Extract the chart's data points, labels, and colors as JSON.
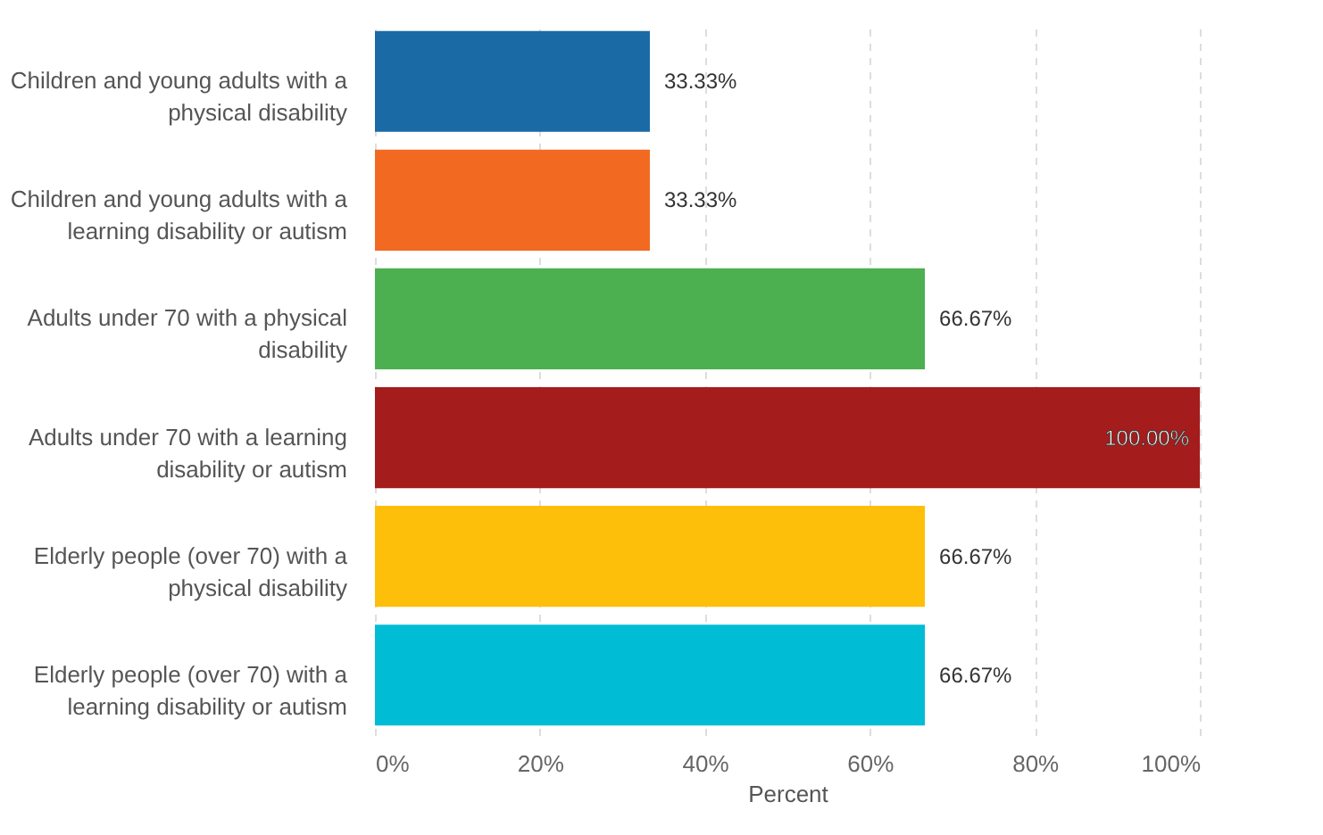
{
  "chart_data": {
    "type": "bar",
    "orientation": "horizontal",
    "xlabel": "Percent",
    "categories": [
      "Children and young adults with a physical disability",
      "Children and young adults with a learning disability or autism",
      "Adults under 70 with a physical disability",
      "Adults under 70 with a learning disability or autism",
      "Elderly people (over 70) with a physical disability",
      "Elderly people (over 70) with a learning disability or autism"
    ],
    "values": [
      33.33,
      33.33,
      66.67,
      100,
      66.67,
      66.67
    ],
    "colors": [
      "#1a6aa6",
      "#f26a21",
      "#4caf50",
      "#a51c1c",
      "#fdbf0a",
      "#00bcd4"
    ],
    "value_labels": [
      "33.33%",
      "33.33%",
      "66.67%",
      "100.00%",
      "66.67%",
      "66.67%"
    ],
    "xlim": [
      0,
      100
    ],
    "xticks": [
      {
        "value": 0,
        "label": "0%"
      },
      {
        "value": 20,
        "label": "20%"
      },
      {
        "value": 40,
        "label": "40%"
      },
      {
        "value": 60,
        "label": "60%"
      },
      {
        "value": 80,
        "label": "80%"
      },
      {
        "value": 100,
        "label": "100%"
      }
    ],
    "grid": "x"
  }
}
